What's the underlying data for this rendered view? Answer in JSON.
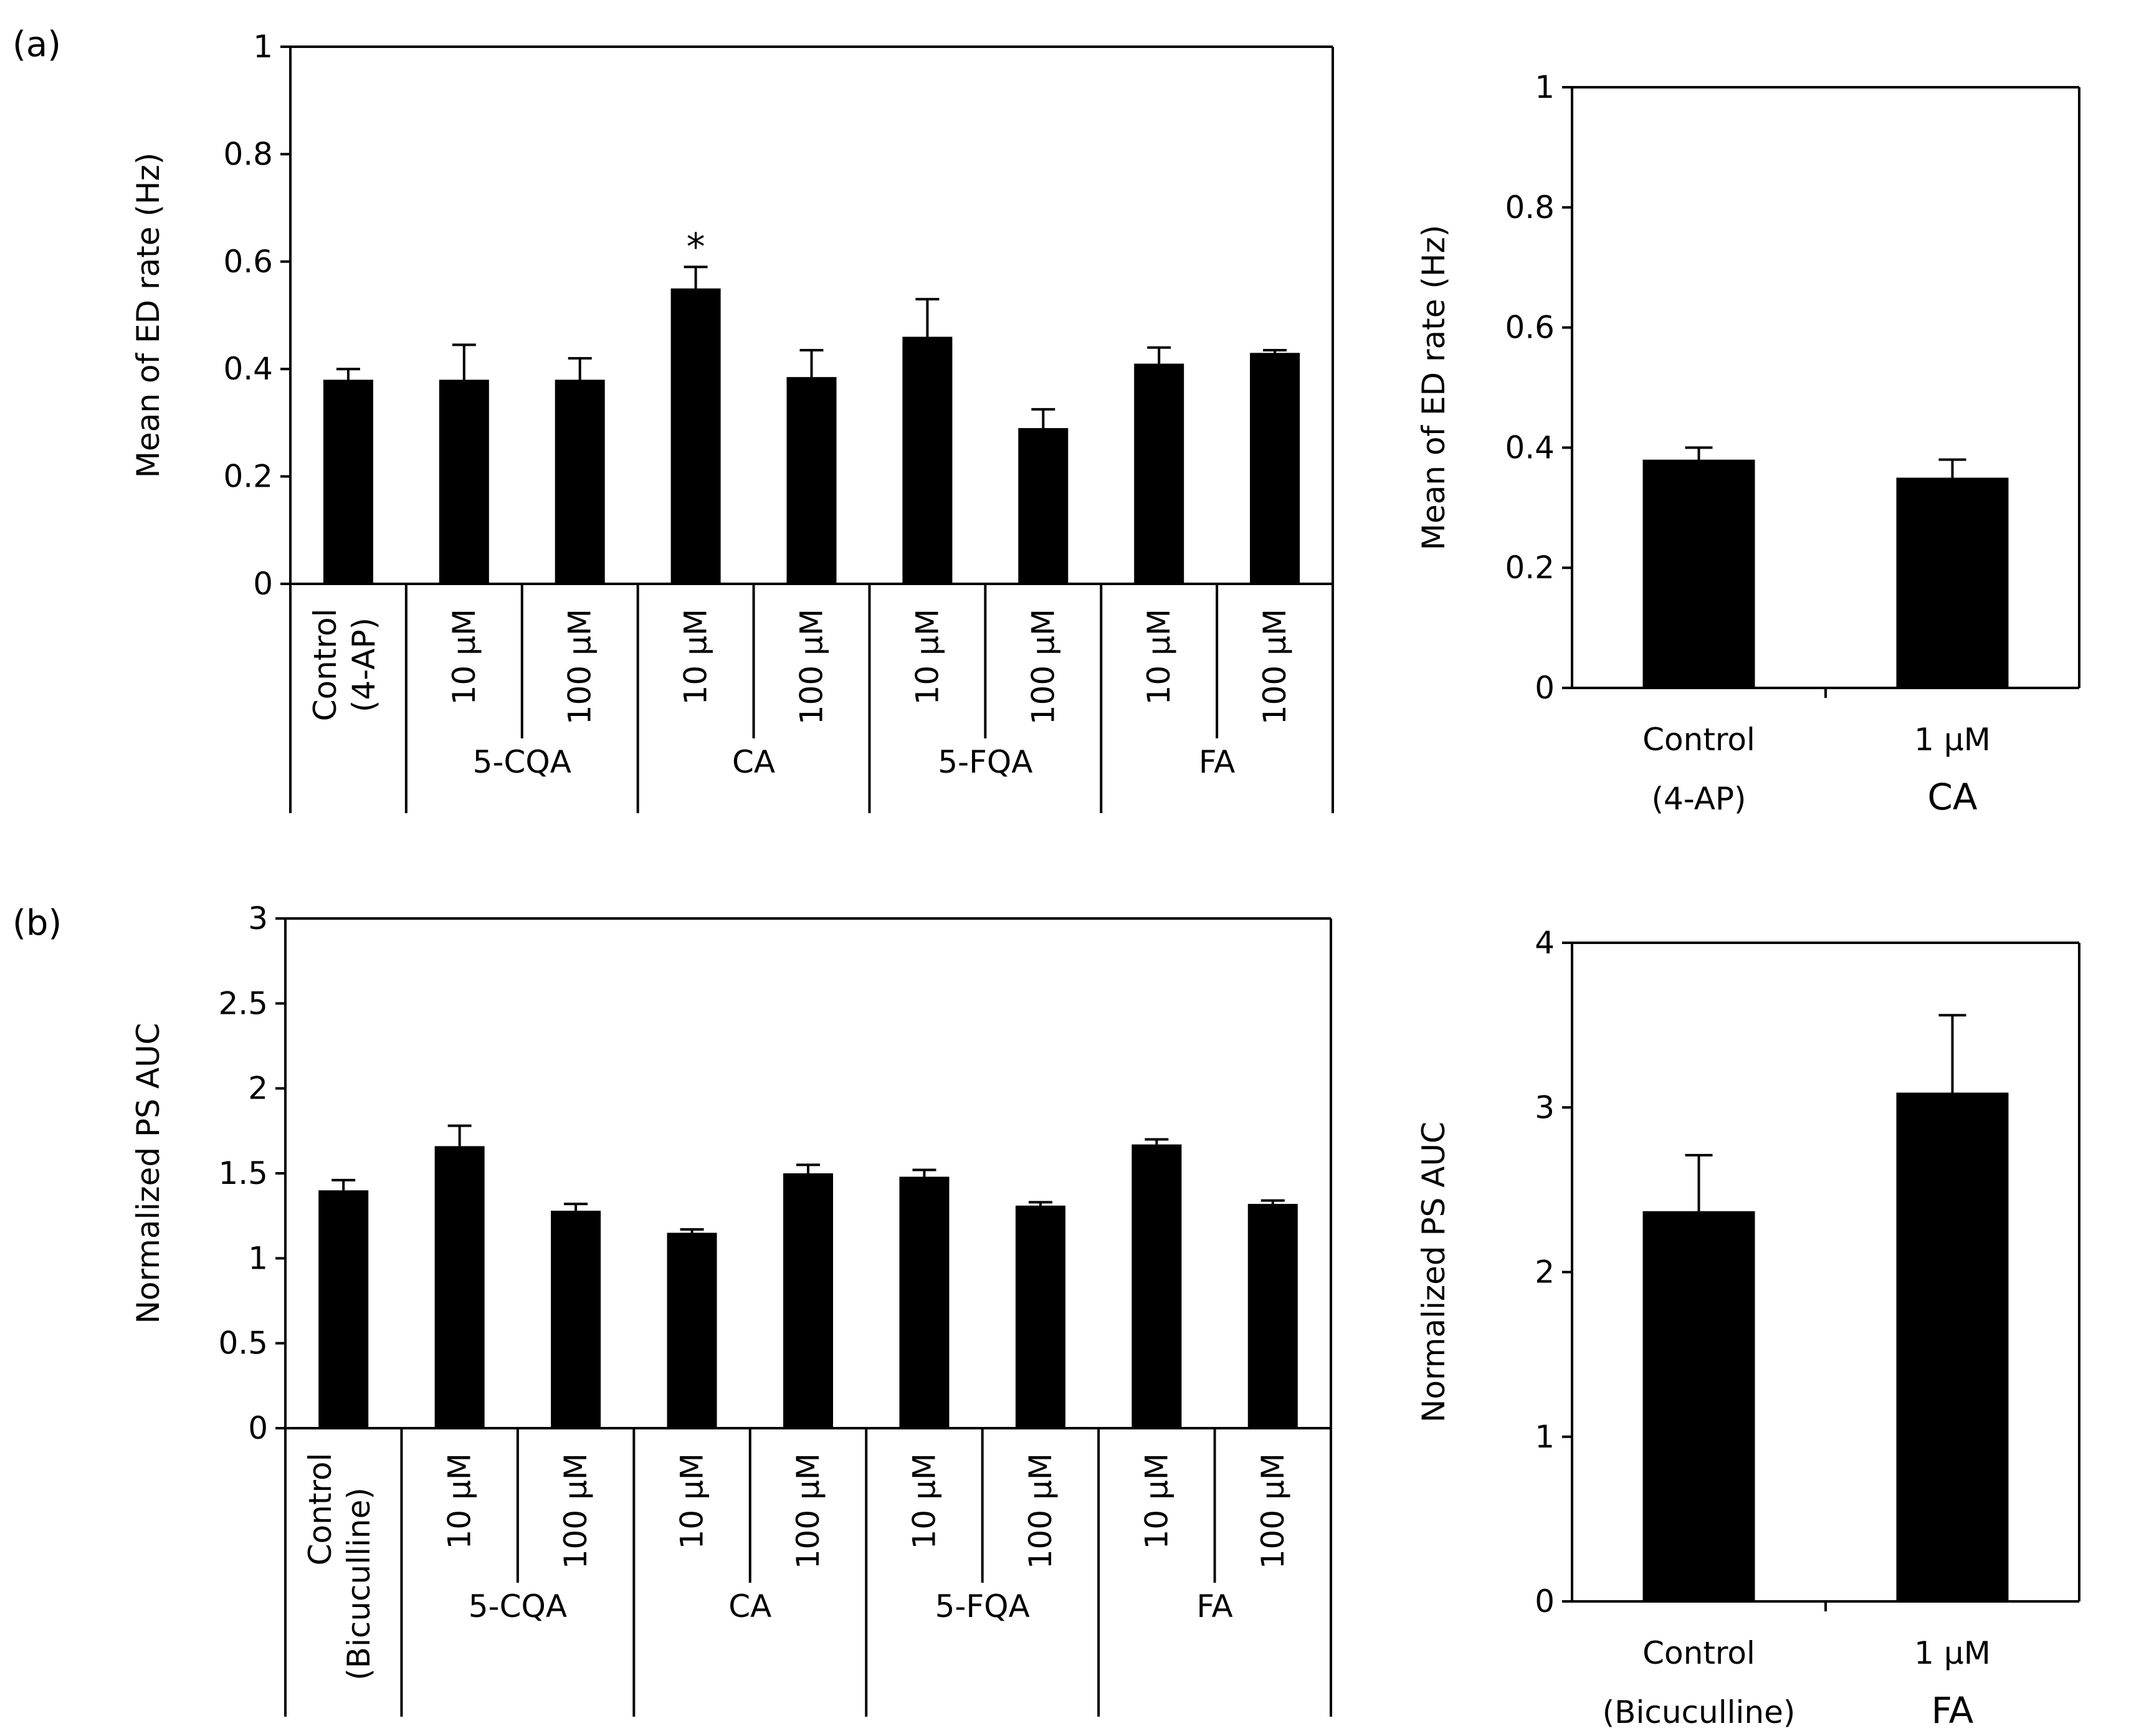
{
  "panel_labels": {
    "a": "(a)",
    "b": "(b)"
  },
  "colors": {
    "bar": "#000000",
    "axis": "#000000",
    "background": "#ffffff"
  },
  "chart_data": [
    {
      "id": "a-left",
      "type": "bar",
      "panel": "(a)",
      "ylabel": "Mean of ED rate (Hz)",
      "ylim": [
        0,
        1
      ],
      "yticks": [
        "0",
        "0.2",
        "0.4",
        "0.6",
        "0.8",
        "1"
      ],
      "categories": [
        {
          "label": "Control",
          "label2": "(4-AP)",
          "group": "Control"
        },
        {
          "label": "10 μM",
          "group": "5-CQA"
        },
        {
          "label": "100 μM",
          "group": "5-CQA"
        },
        {
          "label": "10 μM",
          "group": "CA"
        },
        {
          "label": "100 μM",
          "group": "CA"
        },
        {
          "label": "10 μM",
          "group": "5-FQA"
        },
        {
          "label": "100 μM",
          "group": "5-FQA"
        },
        {
          "label": "10 μM",
          "group": "FA"
        },
        {
          "label": "100 μM",
          "group": "FA"
        }
      ],
      "groups": [
        "5-CQA",
        "CA",
        "5-FQA",
        "FA"
      ],
      "values": [
        0.38,
        0.38,
        0.38,
        0.55,
        0.385,
        0.46,
        0.29,
        0.41,
        0.43
      ],
      "errors": [
        0.02,
        0.065,
        0.04,
        0.04,
        0.05,
        0.07,
        0.035,
        0.03,
        0.005
      ],
      "annotations": [
        {
          "index": 3,
          "text": "*"
        }
      ]
    },
    {
      "id": "a-right",
      "type": "bar",
      "panel": "(a)",
      "ylabel": "Mean of ED rate (Hz)",
      "ylim": [
        0,
        1
      ],
      "yticks": [
        "0",
        "0.2",
        "0.4",
        "0.6",
        "0.8",
        "1"
      ],
      "categories": [
        {
          "line1": "Control",
          "line2": "(4-AP)"
        },
        {
          "line1": "1 μM",
          "line2": "CA"
        }
      ],
      "values": [
        0.38,
        0.35
      ],
      "errors": [
        0.02,
        0.03
      ]
    },
    {
      "id": "b-left",
      "type": "bar",
      "panel": "(b)",
      "ylabel": "Normalized PS AUC",
      "ylim": [
        0,
        3
      ],
      "yticks": [
        "0",
        "0.5",
        "1",
        "1.5",
        "2",
        "2.5",
        "3"
      ],
      "categories": [
        {
          "label": "Control",
          "label2": "(Bicuculline)",
          "group": "Control"
        },
        {
          "label": "10 μM",
          "group": "5-CQA"
        },
        {
          "label": "100 μM",
          "group": "5-CQA"
        },
        {
          "label": "10 μM",
          "group": "CA"
        },
        {
          "label": "100 μM",
          "group": "CA"
        },
        {
          "label": "10 μM",
          "group": "5-FQA"
        },
        {
          "label": "100 μM",
          "group": "5-FQA"
        },
        {
          "label": "10 μM",
          "group": "FA"
        },
        {
          "label": "100 μM",
          "group": "FA"
        }
      ],
      "groups": [
        "5-CQA",
        "CA",
        "5-FQA",
        "FA"
      ],
      "values": [
        1.4,
        1.66,
        1.28,
        1.15,
        1.5,
        1.48,
        1.31,
        1.67,
        1.32
      ],
      "errors": [
        0.06,
        0.12,
        0.04,
        0.02,
        0.05,
        0.04,
        0.02,
        0.03,
        0.02
      ],
      "annotations": []
    },
    {
      "id": "b-right",
      "type": "bar",
      "panel": "(b)",
      "ylabel": "Normalized PS AUC",
      "ylim": [
        0,
        4
      ],
      "yticks": [
        "0",
        "1",
        "2",
        "3",
        "4"
      ],
      "categories": [
        {
          "line1": "Control",
          "line2": "(Bicuculline)"
        },
        {
          "line1": "1 μM",
          "line2": "FA"
        }
      ],
      "values": [
        2.37,
        3.09
      ],
      "errors": [
        0.34,
        0.47
      ]
    }
  ]
}
